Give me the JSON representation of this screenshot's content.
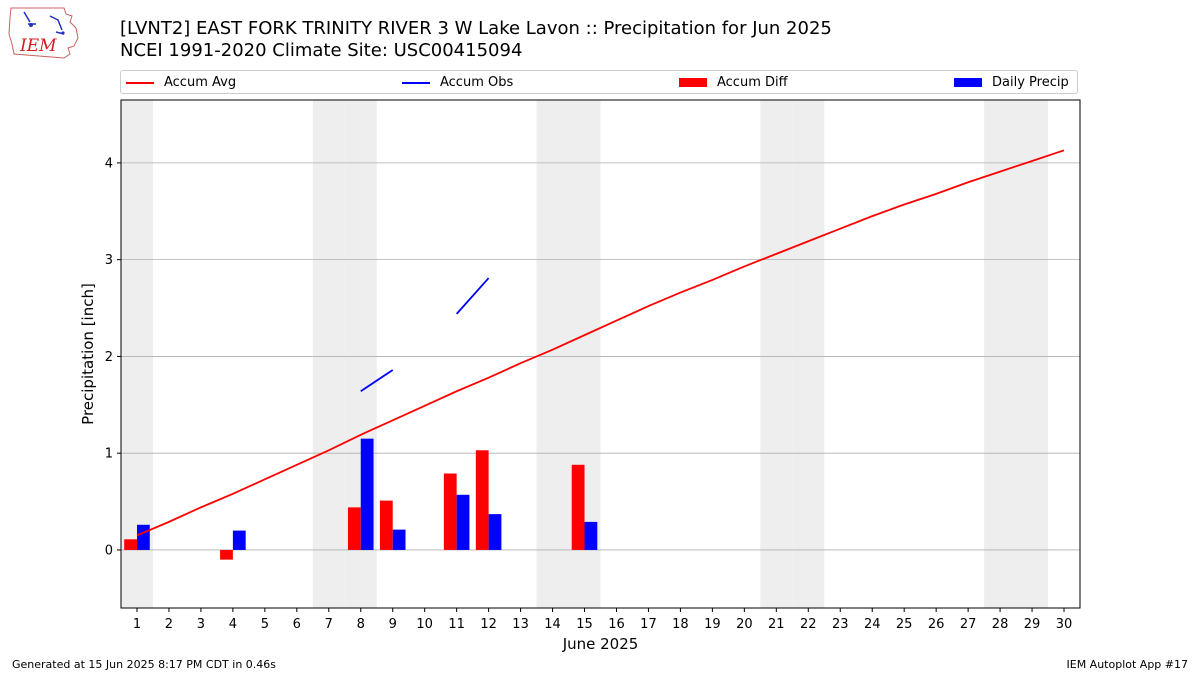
{
  "header": {
    "logo_text": "IEM",
    "title_line1": "[LVNT2] EAST FORK TRINITY RIVER 3 W Lake Lavon :: Precipitation for Jun 2025",
    "title_line2": "NCEI 1991-2020 Climate Site: USC00415094"
  },
  "legend": {
    "accum_avg": "Accum Avg",
    "accum_obs": "Accum Obs",
    "accum_diff": "Accum Diff",
    "daily_precip": "Daily Precip"
  },
  "footer": {
    "generated": "Generated at 15 Jun 2025 8:17 PM CDT in 0.46s",
    "app": "IEM Autoplot App #17"
  },
  "colors": {
    "avg": "#ff0000",
    "obs": "#0000ff",
    "diff": "#ff0000",
    "daily": "#0000ff",
    "weekend_band": "#eeeeee",
    "grid": "#b0b0b0"
  },
  "chart_data": {
    "type": "bar",
    "xlabel": "June 2025",
    "ylabel": "Precipitation [inch]",
    "xlim": [
      0.5,
      30.5
    ],
    "ylim": [
      -0.6,
      4.65
    ],
    "yticks": [
      0,
      1,
      2,
      3,
      4
    ],
    "days": [
      1,
      2,
      3,
      4,
      5,
      6,
      7,
      8,
      9,
      10,
      11,
      12,
      13,
      14,
      15,
      16,
      17,
      18,
      19,
      20,
      21,
      22,
      23,
      24,
      25,
      26,
      27,
      28,
      29,
      30
    ],
    "weekend_days": [
      1,
      7,
      8,
      14,
      15,
      21,
      22,
      28,
      29
    ],
    "grid": true,
    "legend_position": "top",
    "series": [
      {
        "name": "Accum Avg",
        "kind": "line",
        "x": [
          1,
          2,
          3,
          4,
          5,
          6,
          7,
          8,
          9,
          10,
          11,
          12,
          13,
          14,
          15,
          16,
          17,
          18,
          19,
          20,
          21,
          22,
          23,
          24,
          25,
          26,
          27,
          28,
          29,
          30
        ],
        "values": [
          0.15,
          0.29,
          0.44,
          0.58,
          0.73,
          0.88,
          1.03,
          1.19,
          1.34,
          1.49,
          1.64,
          1.78,
          1.93,
          2.07,
          2.22,
          2.37,
          2.52,
          2.66,
          2.79,
          2.93,
          3.06,
          3.19,
          3.32,
          3.45,
          3.57,
          3.68,
          3.8,
          3.91,
          4.02,
          4.13
        ]
      },
      {
        "name": "Accum Obs",
        "kind": "line",
        "segments": [
          {
            "x": [
              8,
              9
            ],
            "values": [
              1.64,
              1.86
            ]
          },
          {
            "x": [
              11,
              12
            ],
            "values": [
              2.44,
              2.81
            ]
          }
        ]
      },
      {
        "name": "Accum Diff",
        "kind": "bar",
        "x": [
          1,
          4,
          8,
          9,
          11,
          12,
          15
        ],
        "values": [
          0.11,
          -0.1,
          0.44,
          0.51,
          0.79,
          1.03,
          0.88
        ]
      },
      {
        "name": "Daily Precip",
        "kind": "bar",
        "x": [
          1,
          4,
          8,
          9,
          11,
          12,
          15
        ],
        "values": [
          0.26,
          0.2,
          1.15,
          0.21,
          0.57,
          0.37,
          0.29
        ]
      }
    ]
  }
}
